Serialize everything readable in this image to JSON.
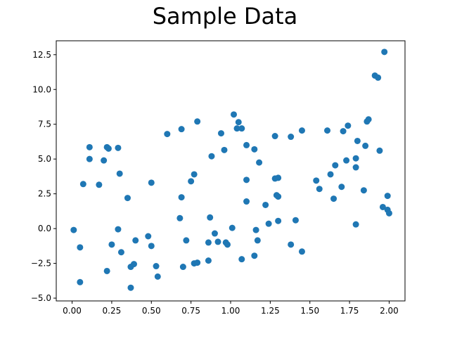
{
  "chart_data": {
    "type": "scatter",
    "title": "Sample Data",
    "xlabel": "",
    "ylabel": "",
    "xlim": [
      -0.1,
      2.1
    ],
    "ylim": [
      -5.2,
      13.5
    ],
    "xticks": [
      0.0,
      0.25,
      0.5,
      0.75,
      1.0,
      1.25,
      1.5,
      1.75,
      2.0
    ],
    "xtick_labels": [
      "0.00",
      "0.25",
      "0.50",
      "0.75",
      "1.00",
      "1.25",
      "1.50",
      "1.75",
      "2.00"
    ],
    "yticks": [
      -5.0,
      -2.5,
      0.0,
      2.5,
      5.0,
      7.5,
      10.0,
      12.5
    ],
    "ytick_labels": [
      "−5.0",
      "−2.5",
      "0.0",
      "2.5",
      "5.0",
      "7.5",
      "10.0",
      "12.5"
    ],
    "grid": false,
    "color": "#1f77b4",
    "points": [
      [
        0.01,
        -0.1
      ],
      [
        0.05,
        -1.35
      ],
      [
        0.05,
        -3.85
      ],
      [
        0.07,
        3.2
      ],
      [
        0.11,
        5.85
      ],
      [
        0.11,
        5.0
      ],
      [
        0.17,
        3.15
      ],
      [
        0.2,
        4.9
      ],
      [
        0.22,
        5.85
      ],
      [
        0.23,
        5.75
      ],
      [
        0.22,
        -3.05
      ],
      [
        0.25,
        -1.15
      ],
      [
        0.29,
        5.8
      ],
      [
        0.29,
        -0.05
      ],
      [
        0.3,
        3.95
      ],
      [
        0.31,
        -1.7
      ],
      [
        0.35,
        2.2
      ],
      [
        0.37,
        -4.25
      ],
      [
        0.37,
        -2.75
      ],
      [
        0.39,
        -2.55
      ],
      [
        0.4,
        -0.85
      ],
      [
        0.48,
        -0.55
      ],
      [
        0.5,
        3.3
      ],
      [
        0.5,
        -1.25
      ],
      [
        0.53,
        -2.7
      ],
      [
        0.54,
        -3.45
      ],
      [
        0.6,
        6.8
      ],
      [
        0.68,
        0.75
      ],
      [
        0.69,
        2.25
      ],
      [
        0.7,
        -2.75
      ],
      [
        0.69,
        7.15
      ],
      [
        0.72,
        -0.85
      ],
      [
        0.75,
        3.4
      ],
      [
        0.77,
        3.9
      ],
      [
        0.77,
        -2.5
      ],
      [
        0.79,
        -2.45
      ],
      [
        0.79,
        7.7
      ],
      [
        0.86,
        -1.0
      ],
      [
        0.86,
        -2.3
      ],
      [
        0.87,
        0.8
      ],
      [
        0.88,
        5.2
      ],
      [
        0.9,
        -0.35
      ],
      [
        0.92,
        -0.95
      ],
      [
        0.94,
        6.85
      ],
      [
        0.96,
        5.65
      ],
      [
        0.97,
        -1.0
      ],
      [
        0.98,
        -1.15
      ],
      [
        1.01,
        0.05
      ],
      [
        1.02,
        8.2
      ],
      [
        1.04,
        7.2
      ],
      [
        1.05,
        7.65
      ],
      [
        1.07,
        7.2
      ],
      [
        1.07,
        -2.2
      ],
      [
        1.1,
        6.0
      ],
      [
        1.1,
        3.5
      ],
      [
        1.1,
        1.95
      ],
      [
        1.15,
        5.7
      ],
      [
        1.16,
        -0.1
      ],
      [
        1.15,
        -1.95
      ],
      [
        1.17,
        -0.85
      ],
      [
        1.18,
        4.75
      ],
      [
        1.22,
        1.7
      ],
      [
        1.24,
        0.35
      ],
      [
        1.28,
        3.6
      ],
      [
        1.28,
        6.65
      ],
      [
        1.29,
        2.4
      ],
      [
        1.3,
        2.3
      ],
      [
        1.3,
        3.65
      ],
      [
        1.3,
        0.55
      ],
      [
        1.38,
        6.6
      ],
      [
        1.38,
        -1.15
      ],
      [
        1.41,
        0.6
      ],
      [
        1.45,
        7.05
      ],
      [
        1.45,
        -1.65
      ],
      [
        1.54,
        3.45
      ],
      [
        1.56,
        2.85
      ],
      [
        1.61,
        7.05
      ],
      [
        1.63,
        3.9
      ],
      [
        1.65,
        2.15
      ],
      [
        1.66,
        4.55
      ],
      [
        1.7,
        3.0
      ],
      [
        1.71,
        7.0
      ],
      [
        1.73,
        4.9
      ],
      [
        1.74,
        7.4
      ],
      [
        1.79,
        5.05
      ],
      [
        1.79,
        4.4
      ],
      [
        1.79,
        0.3
      ],
      [
        1.8,
        6.3
      ],
      [
        1.84,
        2.75
      ],
      [
        1.85,
        5.95
      ],
      [
        1.86,
        7.7
      ],
      [
        1.87,
        7.85
      ],
      [
        1.91,
        11.0
      ],
      [
        1.93,
        10.85
      ],
      [
        1.94,
        5.6
      ],
      [
        1.96,
        1.55
      ],
      [
        1.97,
        12.7
      ],
      [
        1.99,
        2.35
      ],
      [
        1.99,
        1.35
      ],
      [
        2.0,
        1.1
      ]
    ]
  }
}
